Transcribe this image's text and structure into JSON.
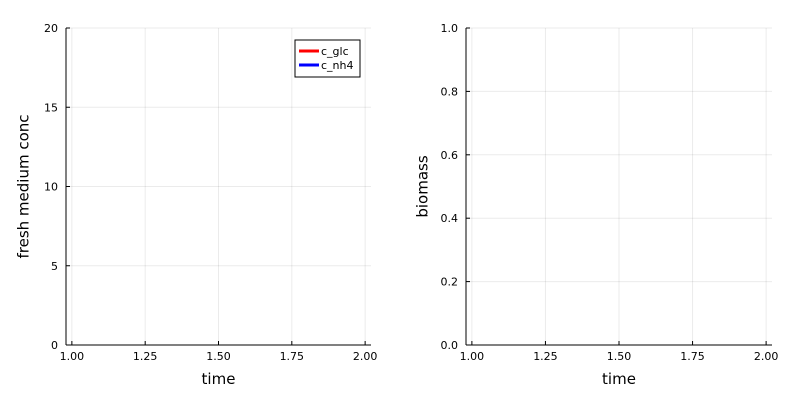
{
  "chart_data": [
    {
      "type": "line",
      "title": "",
      "xlabel": "time",
      "ylabel": "fresh medium conc",
      "xlim": [
        0.98,
        2.02
      ],
      "ylim": [
        0,
        20
      ],
      "x_ticks": [
        1.0,
        1.25,
        1.5,
        1.75,
        2.0
      ],
      "x_tick_labels": [
        "1.00",
        "1.25",
        "1.50",
        "1.75",
        "2.00"
      ],
      "y_ticks": [
        0,
        5,
        10,
        15,
        20
      ],
      "y_tick_labels": [
        "0",
        "5",
        "10",
        "15",
        "20"
      ],
      "grid": true,
      "legend": "top-right",
      "series": [
        {
          "name": "c_glc",
          "color": "#ff0000",
          "x": [],
          "y": []
        },
        {
          "name": "c_nh4",
          "color": "#0000ff",
          "x": [],
          "y": []
        }
      ]
    },
    {
      "type": "line",
      "title": "",
      "xlabel": "time",
      "ylabel": "biomass",
      "xlim": [
        0.98,
        2.02
      ],
      "ylim": [
        0,
        1
      ],
      "x_ticks": [
        1.0,
        1.25,
        1.5,
        1.75,
        2.0
      ],
      "x_tick_labels": [
        "1.00",
        "1.25",
        "1.50",
        "1.75",
        "2.00"
      ],
      "y_ticks": [
        0,
        0.2,
        0.4,
        0.6,
        0.8,
        1.0
      ],
      "y_tick_labels": [
        "0.0",
        "0.2",
        "0.4",
        "0.6",
        "0.8",
        "1.0"
      ],
      "grid": true,
      "legend": "none",
      "series": []
    }
  ]
}
